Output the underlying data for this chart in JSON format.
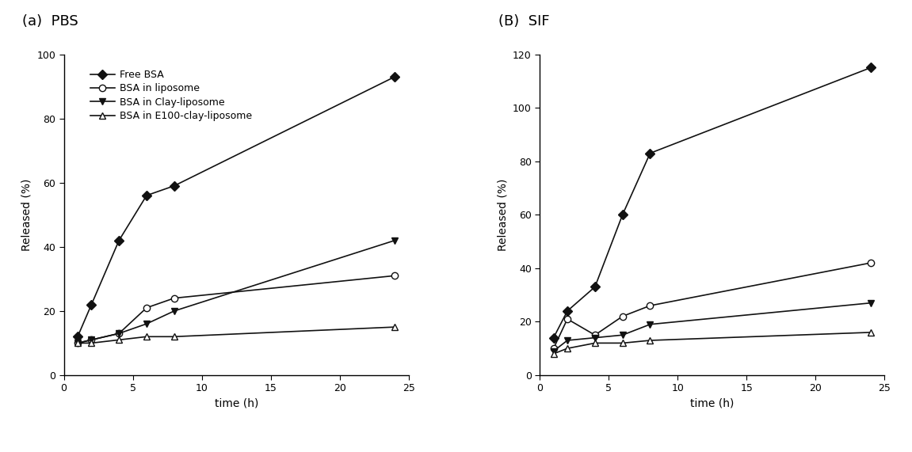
{
  "panel_a": {
    "title": "(a)  PBS",
    "xlabel": "time (h)",
    "ylabel": "Released (%)",
    "xlim": [
      0,
      25
    ],
    "ylim": [
      0,
      100
    ],
    "yticks": [
      0,
      20,
      40,
      60,
      80,
      100
    ],
    "xticks": [
      0,
      5,
      10,
      15,
      20,
      25
    ],
    "series": [
      {
        "label": "Free BSA",
        "x": [
          1,
          2,
          4,
          6,
          8,
          24
        ],
        "y": [
          12,
          22,
          42,
          56,
          59,
          93
        ],
        "marker": "D",
        "fillstyle": "full",
        "color": "#111111",
        "markersize": 6
      },
      {
        "label": "BSA in liposome",
        "x": [
          1,
          2,
          4,
          6,
          8,
          24
        ],
        "y": [
          10,
          11,
          13,
          21,
          24,
          31
        ],
        "marker": "o",
        "fillstyle": "none",
        "color": "#111111",
        "markersize": 6
      },
      {
        "label": "BSA in Clay-liposome",
        "x": [
          1,
          2,
          4,
          6,
          8,
          24
        ],
        "y": [
          10,
          11,
          13,
          16,
          20,
          42
        ],
        "marker": "v",
        "fillstyle": "full",
        "color": "#111111",
        "markersize": 6
      },
      {
        "label": "BSA in E100-clay-liposome",
        "x": [
          1,
          2,
          4,
          6,
          8,
          24
        ],
        "y": [
          10,
          10,
          11,
          12,
          12,
          15
        ],
        "marker": "^",
        "fillstyle": "none",
        "color": "#111111",
        "markersize": 6
      }
    ]
  },
  "panel_b": {
    "title": "(B)  SIF",
    "xlabel": "time (h)",
    "ylabel": "Released (%)",
    "xlim": [
      0,
      25
    ],
    "ylim": [
      0,
      120
    ],
    "yticks": [
      0,
      20,
      40,
      60,
      80,
      100,
      120
    ],
    "xticks": [
      0,
      5,
      10,
      15,
      20,
      25
    ],
    "series": [
      {
        "label": "Free BSA",
        "x": [
          1,
          2,
          4,
          6,
          8,
          24
        ],
        "y": [
          14,
          24,
          33,
          60,
          83,
          115
        ],
        "marker": "D",
        "fillstyle": "full",
        "color": "#111111",
        "markersize": 6
      },
      {
        "label": "BSA in liposome",
        "x": [
          1,
          2,
          4,
          6,
          8,
          24
        ],
        "y": [
          10,
          21,
          15,
          22,
          26,
          42
        ],
        "marker": "o",
        "fillstyle": "none",
        "color": "#111111",
        "markersize": 6
      },
      {
        "label": "BSA in Clay-liposome",
        "x": [
          1,
          2,
          4,
          6,
          8,
          24
        ],
        "y": [
          9,
          13,
          14,
          15,
          19,
          27
        ],
        "marker": "v",
        "fillstyle": "full",
        "color": "#111111",
        "markersize": 6
      },
      {
        "label": "BSA in E100-clay-liposome",
        "x": [
          1,
          2,
          4,
          6,
          8,
          24
        ],
        "y": [
          8,
          10,
          12,
          12,
          13,
          16
        ],
        "marker": "^",
        "fillstyle": "none",
        "color": "#111111",
        "markersize": 6
      }
    ]
  },
  "background_color": "#ffffff",
  "linewidth": 1.2,
  "figsize": [
    11.51,
    5.71
  ],
  "dpi": 100,
  "legend_fontsize": 9,
  "axis_fontsize": 10,
  "title_fontsize": 13,
  "tick_fontsize": 9
}
